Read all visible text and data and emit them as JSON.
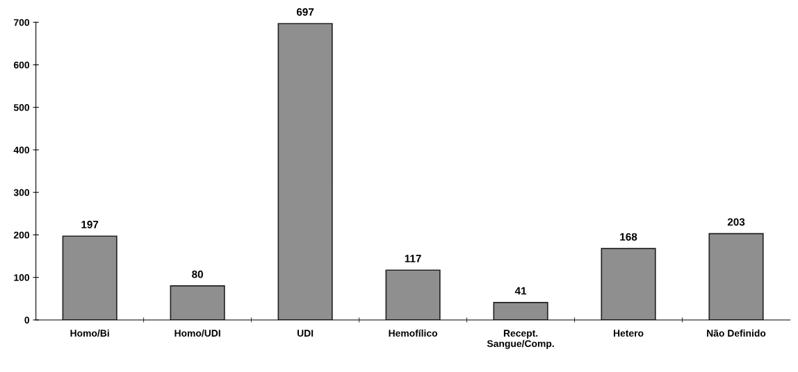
{
  "chart_data": {
    "type": "bar",
    "categories": [
      "Homo/Bi",
      "Homo/UDI",
      "UDI",
      "Hemofílico",
      "Recept.\nSangue/Comp.",
      "Hetero",
      "Não Definido"
    ],
    "values": [
      197,
      80,
      697,
      117,
      41,
      168,
      203
    ],
    "color": "#8f8f8f",
    "ylim": [
      0,
      700
    ],
    "yticks": [
      0,
      100,
      200,
      300,
      400,
      500,
      600,
      700
    ],
    "data_labels": true,
    "grid": false,
    "legend": false
  }
}
